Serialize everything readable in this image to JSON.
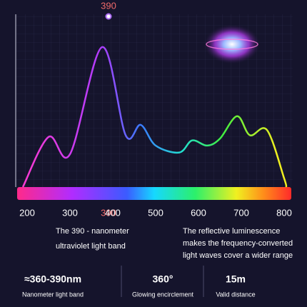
{
  "chart_data": {
    "type": "line",
    "x": [
      190,
      250,
      300,
      375,
      430,
      465,
      500,
      555,
      585,
      620,
      650,
      690,
      720,
      760,
      800,
      805
    ],
    "values": [
      0,
      29,
      19,
      81,
      30,
      36,
      24,
      20,
      27,
      24,
      28,
      41,
      30,
      33,
      5,
      0
    ],
    "xlim": [
      180,
      815
    ],
    "ylim": [
      0,
      100
    ],
    "xticks": [
      200,
      300,
      390,
      400,
      500,
      600,
      700,
      800
    ],
    "peak": 390,
    "highlight_color": "#f06a6a"
  },
  "annotations": [
    "The 390 - nanometer ultraviolet light band",
    "The reflective luminescence makes the frequency-converted light waves cover a wider range"
  ],
  "stats": [
    {
      "value": "≈360-390nm",
      "label": "Nanometer light band"
    },
    {
      "value": "360°",
      "label": "Glowing encirclement"
    },
    {
      "value": "15m",
      "label": "Valid distance"
    }
  ]
}
